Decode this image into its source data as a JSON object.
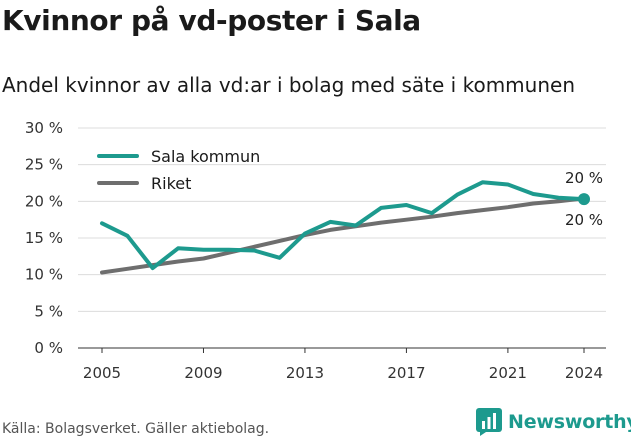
{
  "header": {
    "title": "Kvinnor på vd-poster i Sala",
    "subtitle": "Andel kvinnor av alla vd:ar i bolag med säte i kommunen"
  },
  "footer": {
    "source": "Källa: Bolagsverket. Gäller aktiebolag.",
    "brand": "Newsworthy",
    "brand_icon": "bar-chart-logo-icon"
  },
  "colors": {
    "sala": "#1d9a8e",
    "riket": "#6e6e6e",
    "grid": "#dcdcdc",
    "brand": "#1d9a8e"
  },
  "chart_data": {
    "type": "line",
    "title": "Kvinnor på vd-poster i Sala",
    "subtitle": "Andel kvinnor av alla vd:ar i bolag med säte i kommunen",
    "xlabel": "",
    "ylabel": "",
    "x": [
      2005,
      2006,
      2007,
      2008,
      2009,
      2010,
      2011,
      2012,
      2013,
      2014,
      2015,
      2016,
      2017,
      2018,
      2019,
      2020,
      2021,
      2022,
      2023,
      2024
    ],
    "xticks": [
      "2005",
      "2009",
      "2013",
      "2017",
      "2021",
      "2024"
    ],
    "xlim": [
      2005,
      2024
    ],
    "ylim": [
      0,
      30
    ],
    "yticks": [
      "0 %",
      "5 %",
      "10 %",
      "15 %",
      "20 %",
      "25 %",
      "30 %"
    ],
    "grid": "horizontal",
    "legend_position": "top-left",
    "series": [
      {
        "name": "Sala kommun",
        "color": "#1d9a8e",
        "values": [
          17.0,
          15.3,
          10.9,
          13.6,
          13.4,
          13.4,
          13.3,
          12.3,
          15.6,
          17.2,
          16.7,
          19.1,
          19.5,
          18.4,
          20.9,
          22.6,
          22.3,
          21.0,
          20.5,
          20.3
        ],
        "end_label": "20 %"
      },
      {
        "name": "Riket",
        "color": "#6e6e6e",
        "values": [
          10.3,
          10.8,
          11.3,
          11.8,
          12.2,
          13.0,
          13.8,
          14.6,
          15.4,
          16.1,
          16.6,
          17.1,
          17.5,
          17.9,
          18.4,
          18.8,
          19.2,
          19.7,
          20.0,
          20.4
        ],
        "end_label": "20 %"
      }
    ]
  }
}
